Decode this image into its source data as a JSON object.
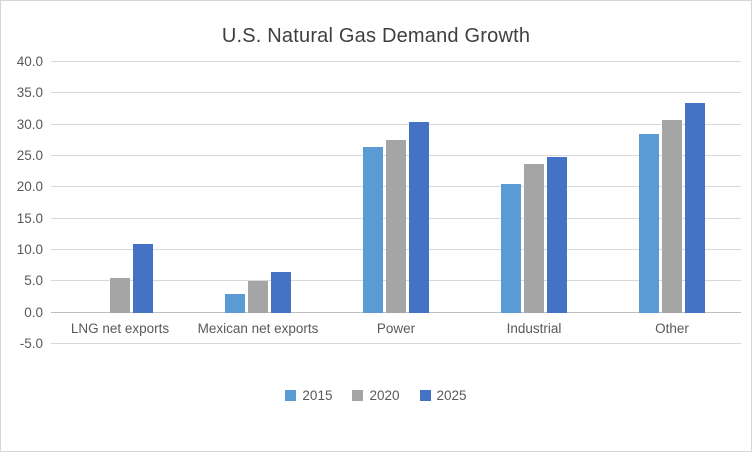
{
  "chart_data": {
    "type": "bar",
    "title": "U.S. Natural Gas Demand Growth",
    "categories": [
      "LNG net exports",
      "Mexican net exports",
      "Power",
      "Industrial",
      "Other"
    ],
    "series": [
      {
        "name": "2015",
        "color": "#5B9BD5",
        "values": [
          0,
          3.0,
          26.5,
          20.5,
          28.5
        ]
      },
      {
        "name": "2020",
        "color": "#A5A5A5",
        "values": [
          5.5,
          5.0,
          27.5,
          23.8,
          30.7
        ]
      },
      {
        "name": "2025",
        "color": "#4472C4",
        "values": [
          11.0,
          6.5,
          30.5,
          24.8,
          33.5
        ]
      }
    ],
    "y_axis": {
      "min": -5,
      "max": 40,
      "step": 5
    },
    "y_ticks": [
      "-5.0",
      "0.0",
      "5.0",
      "10.0",
      "15.0",
      "20.0",
      "25.0",
      "30.0",
      "35.0",
      "40.0"
    ],
    "xlabel": "",
    "ylabel": "",
    "grid": true,
    "legend_position": "bottom",
    "colors": {
      "title_text": "#3F3F3F",
      "axis_text": "#595959",
      "gridline": "#D9D9D9",
      "axis_line": "#BFBFBF",
      "frame_border": "#D6D6D6",
      "background": "#FFFFFF"
    }
  }
}
